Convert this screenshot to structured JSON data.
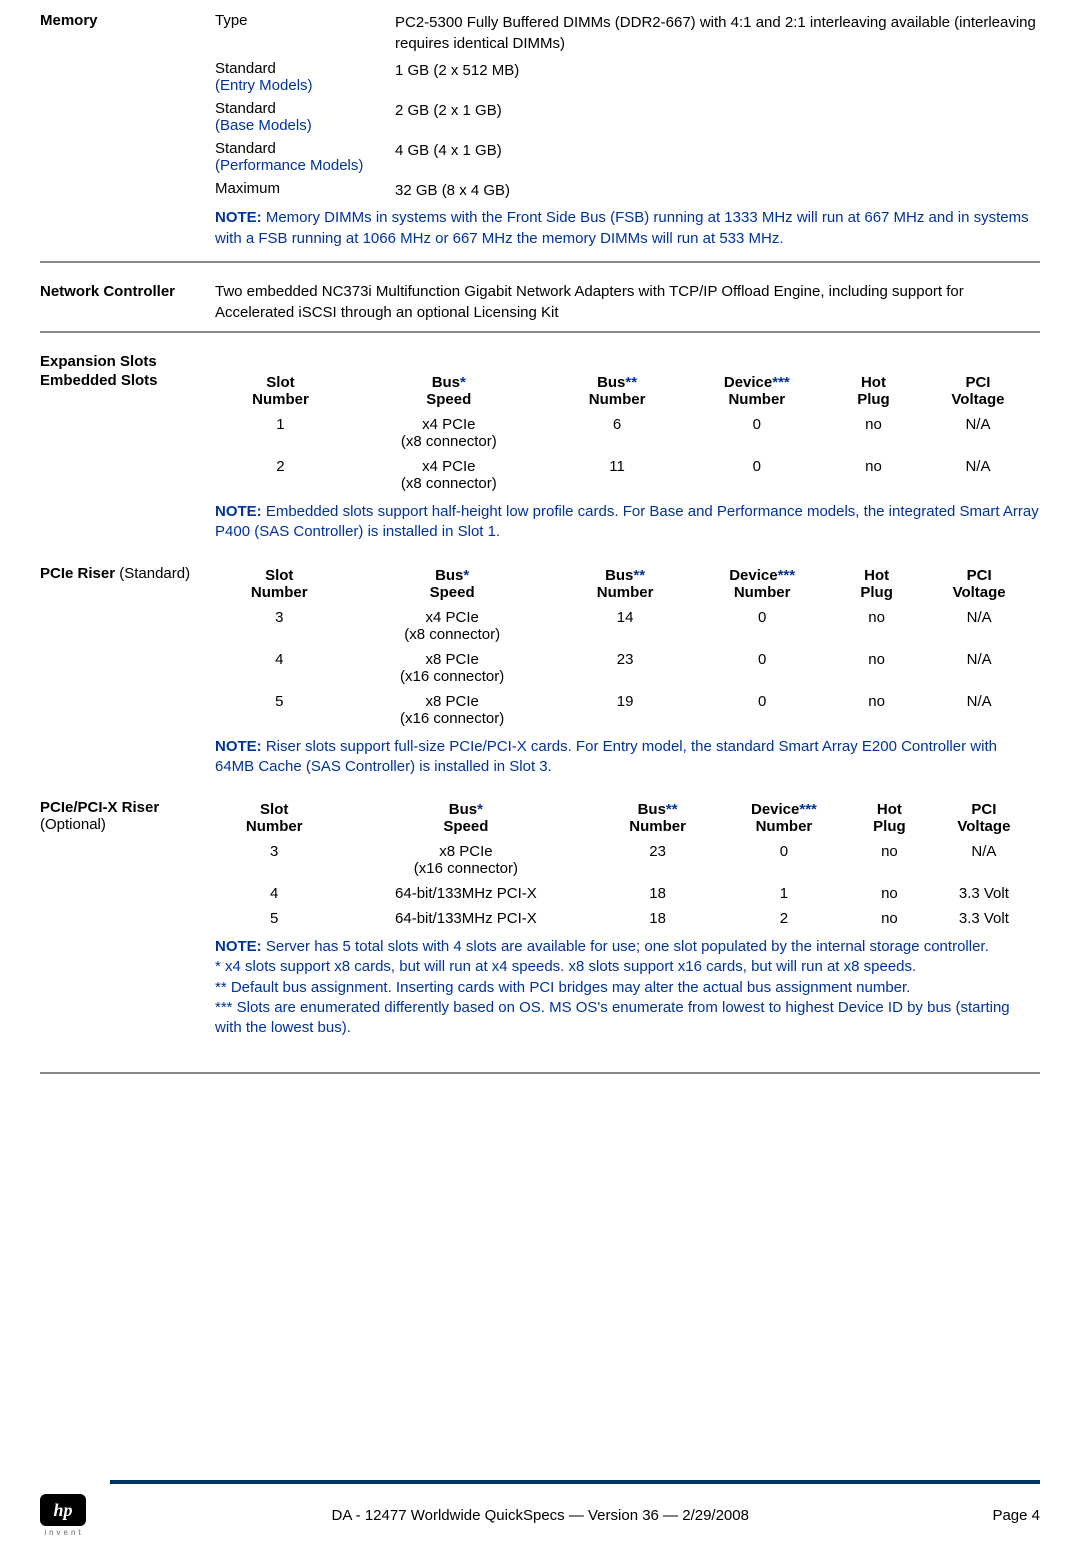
{
  "memory": {
    "heading": "Memory",
    "rows": [
      {
        "label_plain": "Type",
        "label_blue": "",
        "value": "PC2-5300 Fully Buffered DIMMs (DDR2-667) with 4:1 and 2:1 interleaving available (interleaving requires identical DIMMs)"
      },
      {
        "label_plain": "Standard",
        "label_blue": "(Entry Models)",
        "value": "1 GB (2 x 512 MB)"
      },
      {
        "label_plain": "Standard",
        "label_blue": "(Base Models)",
        "value": "2 GB (2 x 1 GB)"
      },
      {
        "label_plain": "Standard",
        "label_blue": "(Performance Models)",
        "value": "4 GB (4 x 1 GB)"
      },
      {
        "label_plain": "Maximum",
        "label_blue": "",
        "value": "32 GB (8 x 4 GB)"
      }
    ],
    "note": "Memory DIMMs in systems with the Front Side Bus (FSB) running at 1333 MHz will run at 667 MHz and in systems with a FSB running at 1066 MHz or 667 MHz the memory DIMMs will run at 533 MHz."
  },
  "network": {
    "heading": "Network Controller",
    "text": "Two embedded NC373i Multifunction Gigabit Network Adapters with TCP/IP Offload Engine, including support for Accelerated iSCSI through an optional Licensing Kit"
  },
  "expansion": {
    "heading": "Expansion Slots",
    "columns": {
      "slot": "Slot Number",
      "speed": "Bus Speed",
      "busnum": "Bus Number",
      "devnum": "Device Number",
      "hotplug": "Hot Plug",
      "voltage": "PCI Voltage"
    },
    "groups": [
      {
        "label_bold": "Embedded Slots",
        "label_normal": "",
        "rows": [
          {
            "slot": "1",
            "speed": "x4 PCIe (x8 connector)",
            "busnum": "6",
            "devnum": "0",
            "hotplug": "no",
            "voltage": "N/A"
          },
          {
            "slot": "2",
            "speed": "x4 PCIe (x8 connector)",
            "busnum": "11",
            "devnum": "0",
            "hotplug": "no",
            "voltage": "N/A"
          }
        ],
        "note": "Embedded slots support half-height low profile cards. For Base and Performance models, the integrated Smart Array P400 (SAS Controller) is installed in Slot 1."
      },
      {
        "label_bold": "PCIe Riser",
        "label_normal": " (Standard)",
        "rows": [
          {
            "slot": "3",
            "speed": "x4 PCIe (x8 connector)",
            "busnum": "14",
            "devnum": "0",
            "hotplug": "no",
            "voltage": "N/A"
          },
          {
            "slot": "4",
            "speed": "x8 PCIe (x16 connector)",
            "busnum": "23",
            "devnum": "0",
            "hotplug": "no",
            "voltage": "N/A"
          },
          {
            "slot": "5",
            "speed": "x8 PCIe (x16 connector)",
            "busnum": "19",
            "devnum": "0",
            "hotplug": "no",
            "voltage": "N/A"
          }
        ],
        "note": "Riser slots support full-size PCIe/PCI-X cards. For Entry model, the standard Smart Array E200 Controller with 64MB Cache (SAS Controller) is installed in Slot 3."
      },
      {
        "label_bold": "PCIe/PCI-X Riser",
        "label_normal": " (Optional)",
        "rows": [
          {
            "slot": "3",
            "speed": "x8 PCIe (x16 connector)",
            "busnum": "23",
            "devnum": "0",
            "hotplug": "no",
            "voltage": "N/A"
          },
          {
            "slot": "4",
            "speed": "64-bit/133MHz PCI-X",
            "busnum": "18",
            "devnum": "1",
            "hotplug": "no",
            "voltage": "3.3 Volt"
          },
          {
            "slot": "5",
            "speed": "64-bit/133MHz PCI-X",
            "busnum": "18",
            "devnum": "2",
            "hotplug": "no",
            "voltage": "3.3 Volt"
          }
        ],
        "note": "Server has 5 total slots with 4 slots are available for use; one slot populated by the internal storage controller.\n* x4 slots support x8 cards, but will run at x4 speeds. x8 slots support x16 cards, but will run at x8 speeds.\n** Default bus assignment. Inserting cards with PCI bridges may alter the actual bus assignment number.\n*** Slots are enumerated differently based on OS. MS OS's enumerate from lowest to highest Device ID by bus (starting with the lowest bus)."
      }
    ]
  },
  "footer": {
    "center": "DA - 12477   Worldwide QuickSpecs — Version 36 — 2/29/2008",
    "page": "Page 4",
    "logo_text": "hp",
    "invent": "invent"
  },
  "labels": {
    "note": "NOTE:"
  }
}
